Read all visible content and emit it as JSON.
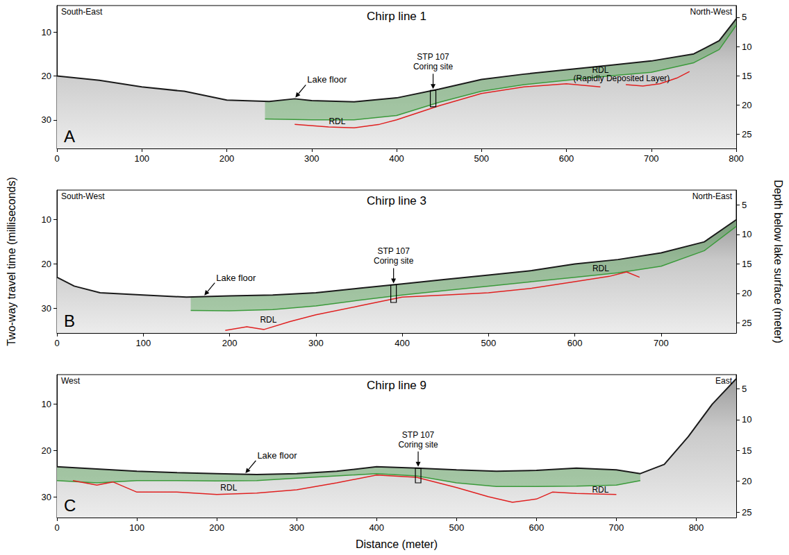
{
  "figure": {
    "x_label": "Distance (meter)",
    "y_label": "Two-way travel time (milliseconds)",
    "y2_label": "Depth below lake surface (meter)"
  },
  "chart_data": [
    {
      "type": "line",
      "title": "Chirp line 1",
      "panel": "A",
      "left_label": "South-East",
      "right_label": "North-West",
      "xlim": [
        0,
        800
      ],
      "xticks": [
        0,
        100,
        200,
        300,
        400,
        500,
        600,
        700,
        800
      ],
      "ylim": [
        4,
        36.5
      ],
      "yticks": [
        10,
        20,
        30
      ],
      "y2lim": [
        3,
        27.4
      ],
      "y2ticks": [
        5,
        10,
        15,
        20,
        25
      ],
      "grid": false,
      "lake_floor": {
        "color": "#1a1a1a",
        "x": [
          0,
          50,
          100,
          150,
          200,
          250,
          280,
          300,
          350,
          400,
          450,
          500,
          550,
          600,
          650,
          700,
          750,
          780,
          800
        ],
        "values": [
          20,
          21,
          22.5,
          23.5,
          25.5,
          25.8,
          25.2,
          25.6,
          25.9,
          25,
          23,
          20.8,
          19.6,
          18.6,
          17.6,
          16.6,
          15,
          12,
          7
        ]
      },
      "green_layer": {
        "color": "#3a9a3a",
        "x": [
          245,
          280,
          300,
          350,
          400,
          450,
          500,
          550,
          600,
          650,
          700,
          750,
          780,
          800
        ],
        "top": [
          25.8,
          25.2,
          25.6,
          25.9,
          25,
          23,
          20.8,
          19.6,
          18.6,
          17.6,
          16.6,
          15,
          12,
          7
        ],
        "bottom": [
          29.8,
          29.9,
          30,
          30,
          29,
          26,
          23.5,
          22,
          21,
          20,
          19.2,
          17,
          14,
          8.5
        ]
      },
      "rdl": {
        "color": "#e02020",
        "x": [
          280,
          320,
          350,
          380,
          400,
          450,
          500,
          550,
          600,
          640,
          655,
          670,
          690,
          710,
          730,
          745
        ],
        "values": [
          31,
          31.6,
          31.8,
          31,
          30,
          26.8,
          24,
          22.5,
          21.8,
          22.5,
          null,
          22,
          22.3,
          21.8,
          20.5,
          19
        ]
      },
      "core": {
        "text": "STP 107\nCoring site",
        "x": 443,
        "top": 23.3,
        "bottom": 27
      },
      "callout": {
        "text": "Lake floor",
        "x": 280,
        "y": 25.2
      },
      "annotations": [
        {
          "text": "RDL",
          "x": 330,
          "y": 30.4
        },
        {
          "text": "RDL",
          "x": 640,
          "y": 18.6
        },
        {
          "text": "(Rapidly Deposited Layer)",
          "x": 665,
          "y": 20.5
        }
      ]
    },
    {
      "type": "line",
      "title": "Chirp line 3",
      "panel": "B",
      "left_label": "South-West",
      "right_label": "North-East",
      "xlim": [
        0,
        787
      ],
      "xticks": [
        0,
        100,
        200,
        300,
        400,
        500,
        600,
        700
      ],
      "ylim": [
        3.3,
        35.6
      ],
      "yticks": [
        10,
        20,
        30
      ],
      "y2lim": [
        2.5,
        26.7
      ],
      "y2ticks": [
        5,
        10,
        15,
        20,
        25
      ],
      "grid": false,
      "lake_floor": {
        "color": "#1a1a1a",
        "x": [
          0,
          20,
          50,
          100,
          150,
          200,
          250,
          300,
          350,
          400,
          450,
          500,
          550,
          600,
          650,
          700,
          750,
          787
        ],
        "values": [
          23,
          25,
          26.5,
          27,
          27.5,
          27.2,
          27,
          26.5,
          25.5,
          24.5,
          23.5,
          22.5,
          21.5,
          20,
          19,
          17.5,
          15,
          10
        ]
      },
      "green_layer": {
        "color": "#3a9a3a",
        "x": [
          155,
          200,
          250,
          300,
          350,
          400,
          450,
          500,
          550,
          600,
          650,
          700,
          750,
          787
        ],
        "top": [
          27.5,
          27.2,
          27,
          26.5,
          25.5,
          24.5,
          23.5,
          22.5,
          21.5,
          20,
          19,
          17.5,
          15,
          10
        ],
        "bottom": [
          30.5,
          30.6,
          30.3,
          29.5,
          28.2,
          27,
          26,
          25,
          24,
          23,
          22,
          20.5,
          17,
          11.5
        ]
      },
      "rdl": {
        "color": "#e02020",
        "x": [
          195,
          220,
          240,
          270,
          300,
          350,
          400,
          450,
          500,
          550,
          600,
          640,
          660,
          675
        ],
        "values": [
          35,
          34.2,
          34.8,
          33,
          31.5,
          29.5,
          27.5,
          27,
          26.5,
          25.5,
          24,
          22.8,
          21.8,
          23
        ]
      },
      "core": {
        "text": "STP 107\nCoring site",
        "x": 390,
        "top": 24.7,
        "bottom": 28.7
      },
      "callout": {
        "text": "Lake floor",
        "x": 170,
        "y": 27.4
      },
      "annotations": [
        {
          "text": "RDL",
          "x": 245,
          "y": 32.6
        },
        {
          "text": "RDL",
          "x": 630,
          "y": 21
        }
      ]
    },
    {
      "type": "line",
      "title": "Chirp line 9",
      "panel": "C",
      "left_label": "West",
      "right_label": "East",
      "xlim": [
        0,
        850
      ],
      "xticks": [
        0,
        100,
        200,
        300,
        400,
        500,
        600,
        700,
        800
      ],
      "ylim": [
        3.6,
        34.5
      ],
      "yticks": [
        10,
        20,
        30
      ],
      "y2lim": [
        2.7,
        25.9
      ],
      "y2ticks": [
        5,
        10,
        15,
        20,
        25
      ],
      "grid": false,
      "lake_floor": {
        "color": "#1a1a1a",
        "x": [
          0,
          50,
          100,
          150,
          200,
          250,
          300,
          350,
          400,
          450,
          500,
          550,
          600,
          650,
          700,
          730,
          760,
          790,
          820,
          850
        ],
        "values": [
          23.5,
          24,
          24.5,
          24.8,
          25,
          25.2,
          25,
          24.5,
          23.5,
          23.8,
          24.2,
          24.5,
          24.3,
          23.8,
          24.2,
          25,
          23,
          17,
          10,
          4.5
        ]
      },
      "green_layer": {
        "color": "#3a9a3a",
        "x": [
          0,
          50,
          100,
          150,
          200,
          250,
          300,
          350,
          400,
          450,
          500,
          550,
          600,
          650,
          700,
          730
        ],
        "top": [
          23.5,
          24,
          24.5,
          24.8,
          25,
          25.2,
          25,
          24.5,
          23.5,
          23.8,
          24.2,
          24.5,
          24.3,
          23.8,
          24.2,
          25
        ],
        "bottom": [
          26.5,
          27,
          26.5,
          26.5,
          26.6,
          26.5,
          26,
          25.5,
          25,
          25.5,
          27,
          27.8,
          27.8,
          27.7,
          27.5,
          26.5
        ]
      },
      "rdl": {
        "color": "#e02020",
        "x": [
          20,
          50,
          70,
          100,
          150,
          200,
          250,
          300,
          350,
          400,
          450,
          500,
          540,
          570,
          600,
          620,
          650,
          700
        ],
        "values": [
          26.5,
          27.5,
          26.8,
          29,
          29,
          29.5,
          29.2,
          28.5,
          27,
          25.3,
          25.8,
          28,
          30,
          31.2,
          30.5,
          29,
          29.3,
          29.5
        ]
      },
      "core": {
        "text": "STP 107\nCoring site",
        "x": 452,
        "top": 23.8,
        "bottom": 27
      },
      "callout": {
        "text": "Lake floor",
        "x": 235,
        "y": 25.2
      },
      "annotations": [
        {
          "text": "RDL",
          "x": 215,
          "y": 28.1
        },
        {
          "text": "RDL",
          "x": 680,
          "y": 28.5
        }
      ]
    }
  ]
}
